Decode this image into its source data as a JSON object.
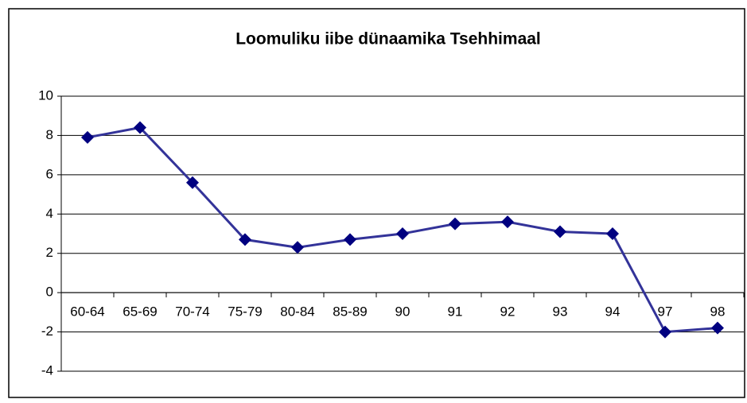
{
  "chart_data": {
    "type": "line",
    "title": "Loomuliku iibe dünaamika Tsehhimaal",
    "categories": [
      "60-64",
      "65-69",
      "70-74",
      "75-79",
      "80-84",
      "85-89",
      "90",
      "91",
      "92",
      "93",
      "94",
      "97",
      "98"
    ],
    "series": [
      {
        "color": "#333399",
        "marker_color": "#000080",
        "values": [
          7.9,
          8.4,
          5.6,
          2.7,
          2.3,
          2.7,
          3.0,
          3.5,
          3.6,
          3.1,
          3.0,
          -2.0,
          -1.8
        ]
      }
    ],
    "ylim": [
      -4,
      10
    ],
    "yticks": [
      -4,
      -2,
      0,
      2,
      4,
      6,
      8,
      10
    ],
    "grid": true
  }
}
